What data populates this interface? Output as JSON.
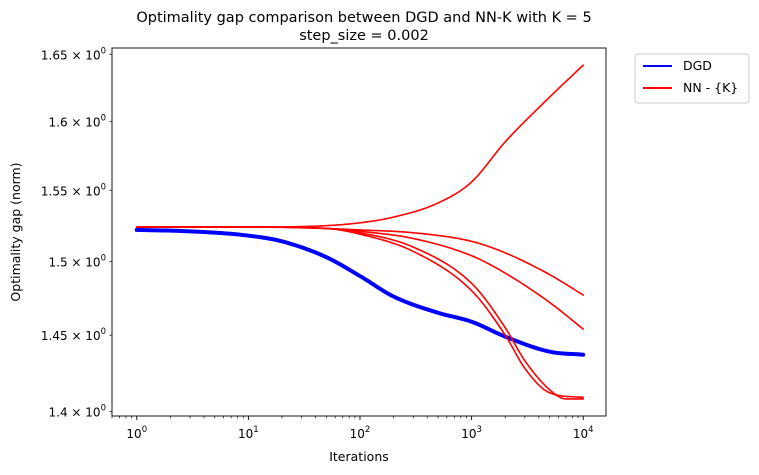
{
  "chart_data": {
    "type": "line",
    "title": "Optimality gap comparison between DGD and NN-K with K = 5",
    "subtitle": "step_size = 0.002",
    "xlabel": "Iterations",
    "ylabel": "Optimality gap (norm)",
    "xscale": "log",
    "yscale": "log",
    "xlim": [
      0.6,
      16000
    ],
    "ylim": [
      1.397,
      1.655
    ],
    "x_ticks": [
      {
        "value": 1,
        "base": "10",
        "exp": "0"
      },
      {
        "value": 10,
        "base": "10",
        "exp": "1"
      },
      {
        "value": 100,
        "base": "10",
        "exp": "2"
      },
      {
        "value": 1000,
        "base": "10",
        "exp": "3"
      },
      {
        "value": 10000,
        "base": "10",
        "exp": "4"
      }
    ],
    "y_ticks": [
      {
        "value": 1.4,
        "mantissa": "1.4",
        "base": "10",
        "exp": "0"
      },
      {
        "value": 1.45,
        "mantissa": "1.45",
        "base": "10",
        "exp": "0"
      },
      {
        "value": 1.5,
        "mantissa": "1.5",
        "base": "10",
        "exp": "0"
      },
      {
        "value": 1.55,
        "mantissa": "1.55",
        "base": "10",
        "exp": "0"
      },
      {
        "value": 1.6,
        "mantissa": "1.6",
        "base": "10",
        "exp": "0"
      },
      {
        "value": 1.65,
        "mantissa": "1.65",
        "base": "10",
        "exp": "0"
      }
    ],
    "legend": {
      "placement": "outside-top-right",
      "entries": [
        {
          "label": "DGD",
          "color": "#0000ff"
        },
        {
          "label": "NN - {K}",
          "color": "#ff0000"
        }
      ]
    },
    "series": [
      {
        "group": "DGD",
        "color": "#0000ff",
        "thick": true,
        "points": [
          [
            1,
            1.522
          ],
          [
            3,
            1.521
          ],
          [
            10,
            1.518
          ],
          [
            20,
            1.514
          ],
          [
            50,
            1.503
          ],
          [
            100,
            1.49
          ],
          [
            200,
            1.476
          ],
          [
            500,
            1.465
          ],
          [
            1000,
            1.459
          ],
          [
            2000,
            1.449
          ],
          [
            5000,
            1.439
          ],
          [
            10000,
            1.437
          ]
        ]
      },
      {
        "group": "NN - {K}",
        "color": "#ff0000",
        "thick": false,
        "points": [
          [
            1,
            1.524
          ],
          [
            10,
            1.524
          ],
          [
            50,
            1.525
          ],
          [
            100,
            1.527
          ],
          [
            200,
            1.531
          ],
          [
            500,
            1.541
          ],
          [
            1000,
            1.556
          ],
          [
            2000,
            1.585
          ],
          [
            5000,
            1.618
          ],
          [
            10000,
            1.642
          ]
        ]
      },
      {
        "group": "NN - {K}",
        "color": "#ff0000",
        "thick": false,
        "points": [
          [
            1,
            1.524
          ],
          [
            10,
            1.524
          ],
          [
            50,
            1.523
          ],
          [
            100,
            1.522
          ],
          [
            300,
            1.52
          ],
          [
            1000,
            1.514
          ],
          [
            2000,
            1.506
          ],
          [
            5000,
            1.491
          ],
          [
            10000,
            1.477
          ]
        ]
      },
      {
        "group": "NN - {K}",
        "color": "#ff0000",
        "thick": false,
        "points": [
          [
            1,
            1.524
          ],
          [
            10,
            1.524
          ],
          [
            50,
            1.523
          ],
          [
            100,
            1.521
          ],
          [
            300,
            1.516
          ],
          [
            1000,
            1.504
          ],
          [
            2000,
            1.492
          ],
          [
            5000,
            1.472
          ],
          [
            10000,
            1.454
          ]
        ]
      },
      {
        "group": "NN - {K}",
        "color": "#ff0000",
        "thick": false,
        "points": [
          [
            1,
            1.524
          ],
          [
            10,
            1.524
          ],
          [
            50,
            1.523
          ],
          [
            100,
            1.52
          ],
          [
            300,
            1.51
          ],
          [
            1000,
            1.485
          ],
          [
            2000,
            1.455
          ],
          [
            3000,
            1.433
          ],
          [
            5000,
            1.414
          ],
          [
            7000,
            1.408
          ],
          [
            10000,
            1.408
          ]
        ]
      },
      {
        "group": "NN - {K}",
        "color": "#ff0000",
        "thick": false,
        "points": [
          [
            1,
            1.524
          ],
          [
            10,
            1.524
          ],
          [
            50,
            1.523
          ],
          [
            100,
            1.519
          ],
          [
            300,
            1.507
          ],
          [
            1000,
            1.48
          ],
          [
            2000,
            1.45
          ],
          [
            3000,
            1.428
          ],
          [
            5000,
            1.412
          ],
          [
            10000,
            1.409
          ]
        ]
      }
    ]
  }
}
